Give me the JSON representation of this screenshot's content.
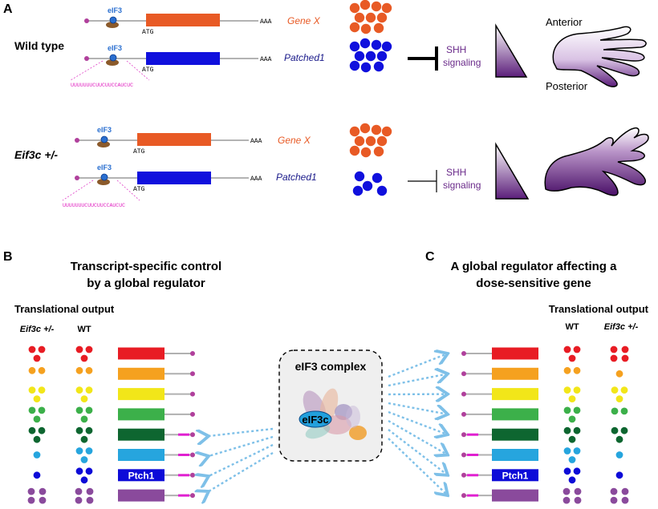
{
  "panels": {
    "A": {
      "letter": "A",
      "rows": [
        {
          "genotype": "Wild type",
          "genes": [
            {
              "factor": "eIF3",
              "start_codon": "ATG",
              "tail": "AAA",
              "name": "Gene X",
              "color": "#e85a25",
              "utr_seq": ""
            },
            {
              "factor": "eIF3",
              "start_codon": "ATG",
              "tail": "AAA",
              "name": "Patched1",
              "color": "#1010dd",
              "utr_seq": "UUUUUUUCUUCUUCCAUCUC"
            }
          ],
          "gene_x_dots": 10,
          "patched_dots": 10,
          "inhibition": "strong",
          "signal_label_1": "SHH",
          "signal_label_2": "signaling",
          "limb_labels": {
            "anterior": "Anterior",
            "posterior": "Posterior"
          }
        },
        {
          "genotype": "Eif3c +/-",
          "genes": [
            {
              "factor": "eIF3",
              "start_codon": "ATG",
              "tail": "AAA",
              "name": "Gene X",
              "color": "#e85a25",
              "utr_seq": ""
            },
            {
              "factor": "eIF3",
              "start_codon": "ATG",
              "tail": "AAA",
              "name": "Patched1",
              "color": "#1010dd",
              "utr_seq": "UUUUUUUCUUCUUCCAUCUC"
            }
          ],
          "gene_x_dots": 10,
          "patched_dots": 5,
          "inhibition": "weak",
          "signal_label_1": "SHH",
          "signal_label_2": "signaling"
        }
      ]
    },
    "B": {
      "letter": "B",
      "title_line1": "Transcript-specific control",
      "title_line2": "by a global regulator",
      "output_label": "Translational output",
      "col_mut": "Eif3c +/-",
      "col_wt": "WT"
    },
    "C": {
      "letter": "C",
      "title_line1": "A global regulator affecting a",
      "title_line2": "dose-sensitive gene",
      "output_label": "Translational output",
      "col_wt": "WT",
      "col_mut": "Eif3c +/-"
    },
    "center": {
      "complex_label": "eIF3 complex",
      "subunit_label": "eIF3c"
    }
  },
  "transcripts": [
    {
      "color": "#e81c24",
      "label": "",
      "magenta_utr": false,
      "dots_B_mut": 3,
      "dots_B_wt": 3,
      "dots_C_wt": 3,
      "dots_C_mut": 4
    },
    {
      "color": "#f5a11f",
      "label": "",
      "magenta_utr": false,
      "dots_B_mut": 2,
      "dots_B_wt": 2,
      "dots_C_wt": 2,
      "dots_C_mut": 1
    },
    {
      "color": "#f2e619",
      "label": "",
      "magenta_utr": false,
      "dots_B_mut": 3,
      "dots_B_wt": 3,
      "dots_C_wt": 3,
      "dots_C_mut": 3
    },
    {
      "color": "#3cb04a",
      "label": "",
      "magenta_utr": false,
      "dots_B_mut": 3,
      "dots_B_wt": 3,
      "dots_C_wt": 3,
      "dots_C_mut": 2
    },
    {
      "color": "#0e6630",
      "label": "",
      "magenta_utr": true,
      "dots_B_mut": 3,
      "dots_B_wt": 3,
      "dots_C_wt": 3,
      "dots_C_mut": 3
    },
    {
      "color": "#26a5de",
      "label": "",
      "magenta_utr": true,
      "dots_B_mut": 1,
      "dots_B_wt": 3,
      "dots_C_wt": 3,
      "dots_C_mut": 1
    },
    {
      "color": "#0d0bd8",
      "label": "Ptch1",
      "magenta_utr": true,
      "dots_B_mut": 1,
      "dots_B_wt": 3,
      "dots_C_wt": 3,
      "dots_C_mut": 1
    },
    {
      "color": "#8a4a9c",
      "label": "",
      "magenta_utr": true,
      "dots_B_mut": 4,
      "dots_B_wt": 4,
      "dots_C_wt": 4,
      "dots_C_mut": 4
    }
  ]
}
